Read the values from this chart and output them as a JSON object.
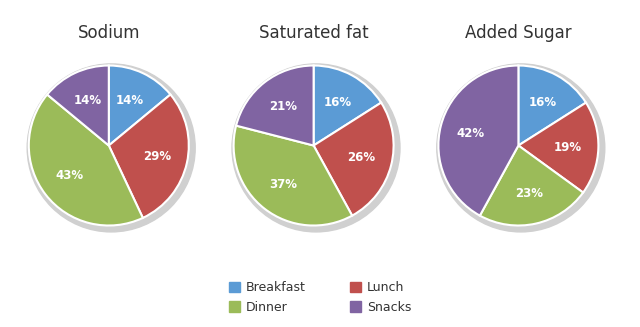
{
  "charts": [
    {
      "title": "Sodium",
      "values": [
        14,
        29,
        43,
        14
      ],
      "labels": [
        "14%",
        "29%",
        "43%",
        "14%"
      ],
      "startangle": 90
    },
    {
      "title": "Saturated fat",
      "values": [
        16,
        26,
        37,
        21
      ],
      "labels": [
        "16%",
        "26%",
        "37%",
        "21%"
      ],
      "startangle": 90
    },
    {
      "title": "Added Sugar",
      "values": [
        16,
        19,
        23,
        42
      ],
      "labels": [
        "16%",
        "19%",
        "23%",
        "42%"
      ],
      "startangle": 90
    }
  ],
  "colors": [
    "#5B9BD5",
    "#C0504D",
    "#9BBB59",
    "#8064A2"
  ],
  "legend_labels": [
    "Breakfast",
    "Lunch",
    "Dinner",
    "Snacks"
  ],
  "background_color": "#FFFFFF",
  "title_fontsize": 12,
  "label_fontsize": 8.5
}
